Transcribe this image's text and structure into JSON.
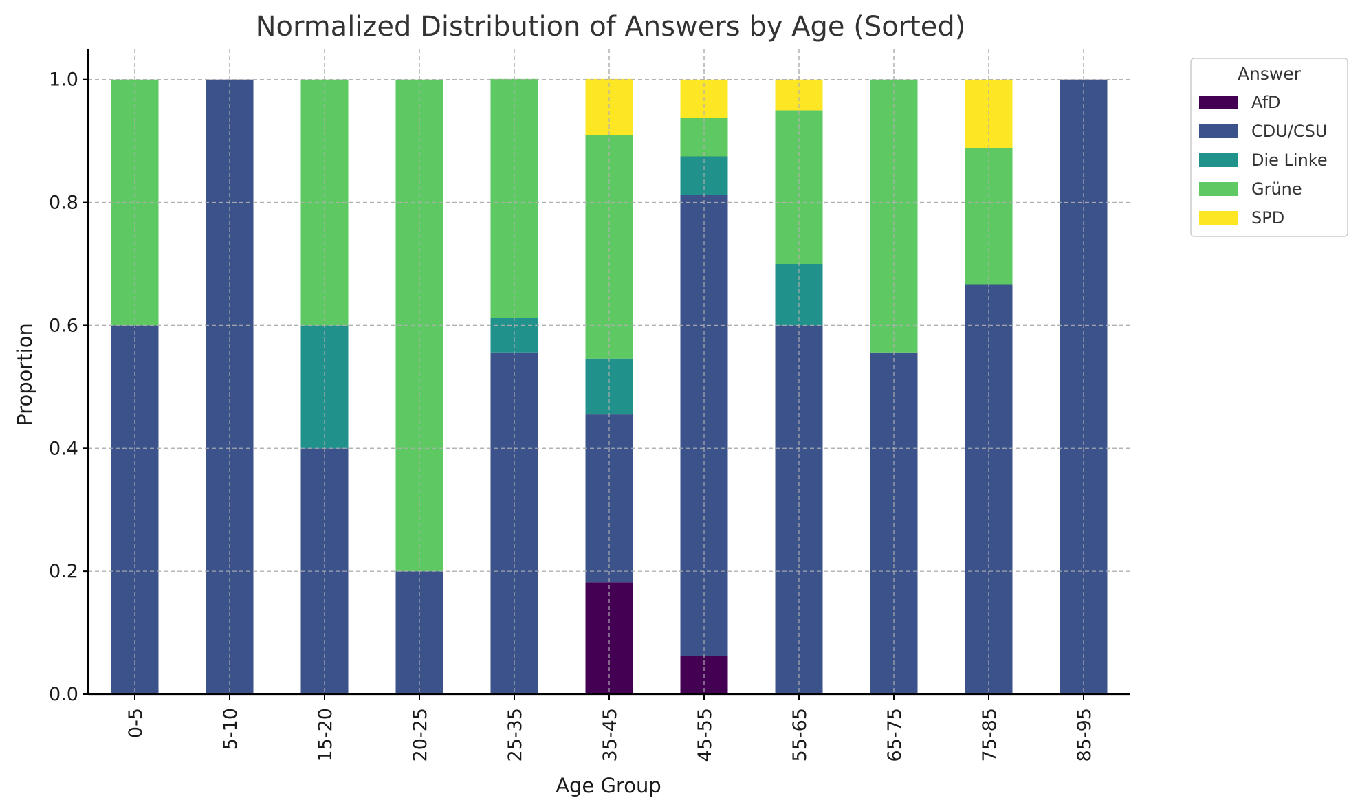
{
  "chart_data": {
    "type": "bar",
    "stacked": true,
    "title": "Normalized Distribution of Answers by Age (Sorted)",
    "xlabel": "Age Group",
    "ylabel": "Proportion",
    "ylim": [
      0,
      1.05
    ],
    "yticks": [
      "0.0",
      "0.2",
      "0.4",
      "0.6",
      "0.8",
      "1.0"
    ],
    "categories": [
      "0-5",
      "5-10",
      "15-20",
      "20-25",
      "25-35",
      "35-45",
      "45-55",
      "55-65",
      "65-75",
      "75-85",
      "85-95"
    ],
    "grid": true,
    "legend": {
      "title": "Answer",
      "position": "outside-top-right"
    },
    "series": [
      {
        "name": "AfD",
        "color": "#440154",
        "values": [
          0,
          0,
          0,
          0,
          0,
          0.182,
          0.0625,
          0,
          0,
          0,
          0
        ]
      },
      {
        "name": "CDU/CSU",
        "color": "#3b528b",
        "values": [
          0.6,
          1.0,
          0.4,
          0.2,
          0.556,
          0.273,
          0.75,
          0.6,
          0.556,
          0.667,
          1.0
        ]
      },
      {
        "name": "Die Linke",
        "color": "#21918c",
        "values": [
          0,
          0,
          0.2,
          0,
          0.056,
          0.091,
          0.0625,
          0.1,
          0,
          0,
          0
        ]
      },
      {
        "name": "Grüne",
        "color": "#5ec962",
        "values": [
          0.4,
          0,
          0.4,
          0.8,
          0.389,
          0.364,
          0.0625,
          0.25,
          0.444,
          0.222,
          0
        ]
      },
      {
        "name": "SPD",
        "color": "#fde725",
        "values": [
          0,
          0,
          0,
          0,
          0,
          0.091,
          0.0625,
          0.05,
          0,
          0.111,
          0
        ]
      }
    ]
  }
}
